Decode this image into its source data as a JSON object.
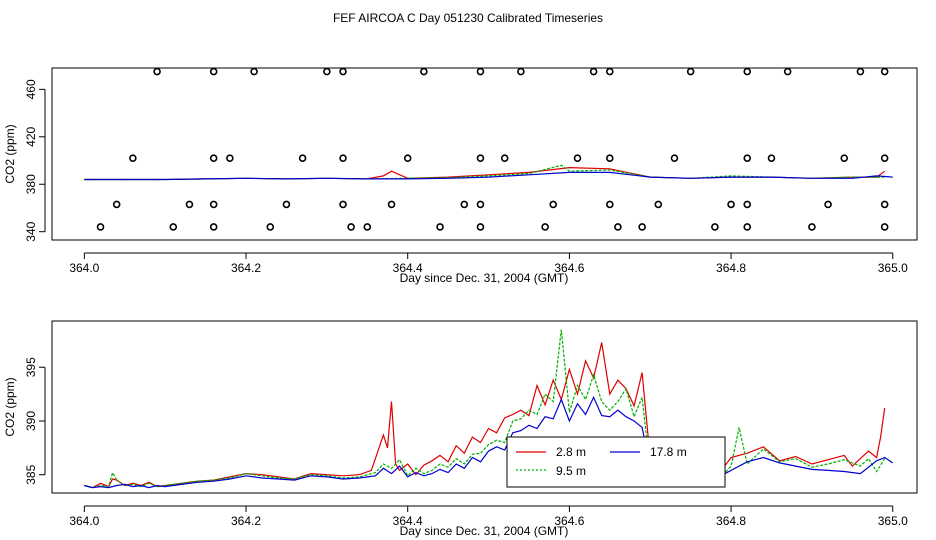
{
  "title": "FEF AIRCOA C  Day 051230  Calibrated Timeseries",
  "colors": {
    "series_2_8m": "#e00000",
    "series_9_5m": "#00b000",
    "series_17_8m": "#0000d0",
    "flags": "#000000"
  },
  "chart_data": [
    {
      "type": "line",
      "title": "",
      "xlabel": "Day since Dec. 31, 2004 (GMT)",
      "ylabel": "CO2 (ppm)",
      "xlim": [
        363.96,
        365.03
      ],
      "ylim": [
        333,
        478
      ],
      "xticks": [
        "364.0",
        "364.2",
        "364.4",
        "364.6",
        "364.8",
        "365.0"
      ],
      "xtick_values": [
        364.0,
        364.2,
        364.4,
        364.6,
        364.8,
        365.0
      ],
      "yticks": [
        "340",
        "380",
        "420",
        "460"
      ],
      "ytick_values": [
        340,
        380,
        420,
        460
      ],
      "series": [
        {
          "color_key": "series_2_8m",
          "x": [
            364.0,
            364.05,
            364.1,
            364.15,
            364.2,
            364.25,
            364.3,
            364.35,
            364.37,
            364.38,
            364.4,
            364.45,
            364.5,
            364.55,
            364.6,
            364.65,
            364.7,
            364.75,
            364.8,
            364.85,
            364.9,
            364.95,
            364.98,
            364.99
          ],
          "y": [
            384,
            384,
            384,
            384.5,
            385,
            384.5,
            385,
            384.5,
            387,
            391,
            385,
            386,
            388,
            390,
            394,
            393,
            386,
            385,
            386,
            386,
            385,
            386,
            386,
            391
          ]
        },
        {
          "color_key": "series_9_5m",
          "x": [
            364.0,
            364.05,
            364.1,
            364.15,
            364.2,
            364.25,
            364.3,
            364.35,
            364.4,
            364.45,
            364.5,
            364.55,
            364.59,
            364.6,
            364.65,
            364.7,
            364.75,
            364.8,
            364.85,
            364.9,
            364.95,
            364.99
          ],
          "y": [
            384,
            384,
            384,
            384.5,
            385,
            384.5,
            385,
            384.5,
            385,
            385.5,
            387,
            389,
            396,
            391,
            392,
            386,
            385,
            387,
            386,
            385,
            386,
            386
          ]
        },
        {
          "color_key": "series_17_8m",
          "x": [
            364.0,
            364.05,
            364.1,
            364.15,
            364.2,
            364.25,
            364.3,
            364.35,
            364.4,
            364.45,
            364.5,
            364.55,
            364.6,
            364.65,
            364.7,
            364.75,
            364.8,
            364.85,
            364.9,
            364.95,
            364.98,
            365.0
          ],
          "y": [
            384,
            384,
            384,
            384.5,
            385,
            384.5,
            385,
            384.5,
            384.5,
            385,
            386,
            388,
            390,
            390,
            386,
            385,
            386,
            386,
            385,
            385,
            387,
            386
          ]
        }
      ],
      "flag_points": {
        "x": [
          364.09,
          364.16,
          364.21,
          364.3,
          364.32,
          364.42,
          364.49,
          364.54,
          364.63,
          364.65,
          364.75,
          364.82,
          364.87,
          364.96,
          364.99,
          364.06,
          364.16,
          364.18,
          364.27,
          364.32,
          364.4,
          364.49,
          364.52,
          364.61,
          364.65,
          364.73,
          364.82,
          364.85,
          364.94,
          364.99,
          364.04,
          364.13,
          364.16,
          364.25,
          364.32,
          364.38,
          364.47,
          364.49,
          364.58,
          364.65,
          364.71,
          364.8,
          364.82,
          364.92,
          364.99,
          364.02,
          364.11,
          364.16,
          364.23,
          364.33,
          364.35,
          364.44,
          364.49,
          364.57,
          364.66,
          364.69,
          364.78,
          364.82,
          364.9,
          364.99
        ],
        "y": [
          475,
          475,
          475,
          475,
          475,
          475,
          475,
          475,
          475,
          475,
          475,
          475,
          475,
          475,
          475,
          402,
          402,
          402,
          402,
          402,
          402,
          402,
          402,
          402,
          402,
          402,
          402,
          402,
          402,
          402,
          363,
          363,
          363,
          363,
          363,
          363,
          363,
          363,
          363,
          363,
          363,
          363,
          363,
          363,
          363,
          344,
          344,
          344,
          344,
          344,
          344,
          344,
          344,
          344,
          344,
          344,
          344,
          344,
          344,
          344
        ]
      }
    },
    {
      "type": "line",
      "title": "",
      "xlabel": "Day since Dec. 31, 2004 (GMT)",
      "ylabel": "CO2 (ppm)",
      "xlim": [
        363.96,
        365.03
      ],
      "ylim": [
        383.3,
        399.3
      ],
      "xticks": [
        "364.0",
        "364.2",
        "364.4",
        "364.6",
        "364.8",
        "365.0"
      ],
      "xtick_values": [
        364.0,
        364.2,
        364.4,
        364.6,
        364.8,
        365.0
      ],
      "yticks": [
        "385",
        "390",
        "395"
      ],
      "ytick_values": [
        385,
        390,
        395
      ],
      "legend": {
        "position": "bottom-center",
        "entries": [
          {
            "label": "2.8 m",
            "color_key": "series_2_8m"
          },
          {
            "label": "9.5 m",
            "color_key": "series_9_5m"
          },
          {
            "label": "17.8 m",
            "color_key": "series_17_8m"
          }
        ]
      },
      "series": [
        {
          "name": "2.8 m",
          "color_key": "series_2_8m",
          "x": [
            364.0,
            364.01,
            364.02,
            364.03,
            364.035,
            364.04,
            364.05,
            364.06,
            364.07,
            364.08,
            364.09,
            364.1,
            364.12,
            364.14,
            364.16,
            364.18,
            364.2,
            364.22,
            364.24,
            364.26,
            364.28,
            364.3,
            364.32,
            364.34,
            364.355,
            364.36,
            364.37,
            364.375,
            364.38,
            364.385,
            364.39,
            364.4,
            364.41,
            364.42,
            364.43,
            364.44,
            364.45,
            364.46,
            364.47,
            364.48,
            364.49,
            364.5,
            364.51,
            364.52,
            364.53,
            364.54,
            364.55,
            364.56,
            364.57,
            364.58,
            364.59,
            364.6,
            364.61,
            364.62,
            364.63,
            364.64,
            364.65,
            364.66,
            364.67,
            364.68,
            364.69,
            364.7,
            364.71,
            364.72,
            364.73,
            364.75,
            364.77,
            364.79,
            364.8,
            364.82,
            364.84,
            364.86,
            364.88,
            364.9,
            364.92,
            364.94,
            364.95,
            364.96,
            364.97,
            364.98,
            364.985,
            364.99
          ],
          "y": [
            384,
            383.8,
            384.2,
            383.9,
            384.6,
            384.5,
            384.0,
            384.2,
            384.0,
            384.3,
            383.9,
            384.0,
            384.2,
            384.4,
            384.5,
            384.8,
            385.1,
            385.0,
            384.8,
            384.6,
            385.1,
            385.0,
            384.9,
            385.0,
            385.4,
            386.5,
            388.7,
            387.5,
            391.8,
            386.0,
            385.4,
            386.0,
            385.0,
            385.9,
            386.3,
            386.8,
            386.2,
            387.7,
            387.0,
            388.5,
            388.0,
            389.3,
            388.9,
            390.3,
            390.6,
            391.0,
            390.5,
            393.3,
            391.5,
            393.8,
            392.0,
            394.8,
            392.5,
            395.6,
            394.0,
            397.3,
            392.5,
            393.8,
            393.0,
            391.4,
            394.5,
            386.5,
            387.5,
            385.8,
            385.2,
            385.5,
            385.2,
            385.6,
            386.6,
            387.0,
            387.6,
            386.3,
            386.7,
            386.0,
            386.4,
            386.8,
            385.8,
            386.5,
            387.2,
            386.6,
            388.5,
            391.2
          ]
        },
        {
          "name": "9.5 m",
          "color_key": "series_9_5m",
          "x": [
            364.0,
            364.01,
            364.02,
            364.03,
            364.035,
            364.04,
            364.05,
            364.06,
            364.07,
            364.08,
            364.09,
            364.1,
            364.12,
            364.14,
            364.16,
            364.18,
            364.2,
            364.22,
            364.24,
            364.26,
            364.28,
            364.3,
            364.32,
            364.34,
            364.36,
            364.37,
            364.38,
            364.39,
            364.4,
            364.41,
            364.42,
            364.43,
            364.44,
            364.45,
            364.46,
            364.47,
            364.48,
            364.49,
            364.5,
            364.51,
            364.52,
            364.53,
            364.54,
            364.55,
            364.56,
            364.57,
            364.58,
            364.59,
            364.6,
            364.61,
            364.62,
            364.63,
            364.64,
            364.65,
            364.66,
            364.67,
            364.68,
            364.69,
            364.7,
            364.71,
            364.72,
            364.73,
            364.75,
            364.77,
            364.79,
            364.8,
            364.81,
            364.82,
            364.84,
            364.86,
            364.88,
            364.9,
            364.92,
            364.94,
            364.96,
            364.97,
            364.98,
            364.99
          ],
          "y": [
            384,
            383.8,
            384.0,
            383.9,
            385.2,
            384.5,
            384.0,
            384.1,
            383.9,
            384.2,
            383.9,
            384.0,
            384.2,
            384.4,
            384.5,
            384.7,
            385.1,
            384.9,
            384.7,
            384.6,
            385.0,
            384.9,
            384.7,
            384.8,
            385.2,
            386.0,
            385.6,
            386.4,
            384.9,
            385.6,
            385.1,
            385.4,
            386.0,
            385.7,
            386.5,
            386.0,
            386.9,
            387.0,
            387.8,
            388.2,
            388.0,
            390.0,
            390.2,
            391.0,
            390.6,
            392.5,
            391.8,
            398.5,
            390.8,
            393.3,
            392.0,
            394.3,
            391.8,
            391.0,
            391.8,
            393.0,
            390.4,
            392.2,
            385.4,
            386.6,
            385.2,
            385.6,
            385.3,
            385.4,
            385.0,
            385.8,
            389.4,
            386.0,
            387.4,
            386.2,
            386.5,
            385.7,
            386.0,
            386.4,
            385.8,
            386.5,
            385.3,
            386.5
          ]
        },
        {
          "name": "17.8 m",
          "color_key": "series_17_8m",
          "x": [
            364.0,
            364.01,
            364.02,
            364.03,
            364.04,
            364.05,
            364.06,
            364.07,
            364.08,
            364.09,
            364.1,
            364.12,
            364.14,
            364.16,
            364.18,
            364.2,
            364.22,
            364.24,
            364.26,
            364.28,
            364.3,
            364.32,
            364.34,
            364.36,
            364.37,
            364.38,
            364.39,
            364.4,
            364.41,
            364.42,
            364.43,
            364.44,
            364.45,
            364.46,
            364.47,
            364.48,
            364.49,
            364.5,
            364.51,
            364.52,
            364.53,
            364.54,
            364.55,
            364.56,
            364.57,
            364.58,
            364.59,
            364.6,
            364.61,
            364.62,
            364.63,
            364.64,
            364.65,
            364.66,
            364.67,
            364.68,
            364.69,
            364.7,
            364.71,
            364.72,
            364.73,
            364.75,
            364.77,
            364.79,
            364.8,
            364.82,
            364.84,
            364.86,
            364.88,
            364.9,
            364.92,
            364.94,
            364.96,
            364.98,
            364.99,
            365.0
          ],
          "y": [
            384,
            383.8,
            383.9,
            383.8,
            384.0,
            384.1,
            383.9,
            384.0,
            383.8,
            384.0,
            383.9,
            384.1,
            384.3,
            384.4,
            384.6,
            384.9,
            384.7,
            384.6,
            384.5,
            384.9,
            384.8,
            384.6,
            384.7,
            384.9,
            385.6,
            385.1,
            385.8,
            384.8,
            385.2,
            384.9,
            385.1,
            385.5,
            385.2,
            386.0,
            385.6,
            386.6,
            386.2,
            387.2,
            387.6,
            387.3,
            388.9,
            389.1,
            389.6,
            389.3,
            390.4,
            390.2,
            392.0,
            390.0,
            391.6,
            390.6,
            392.2,
            390.5,
            390.4,
            391.0,
            390.4,
            390.0,
            389.4,
            385.8,
            386.0,
            385.3,
            385.5,
            385.2,
            385.3,
            385.0,
            385.4,
            386.2,
            386.6,
            386.1,
            385.8,
            385.5,
            385.4,
            385.3,
            385.1,
            386.3,
            386.6,
            386.1
          ]
        }
      ]
    }
  ]
}
